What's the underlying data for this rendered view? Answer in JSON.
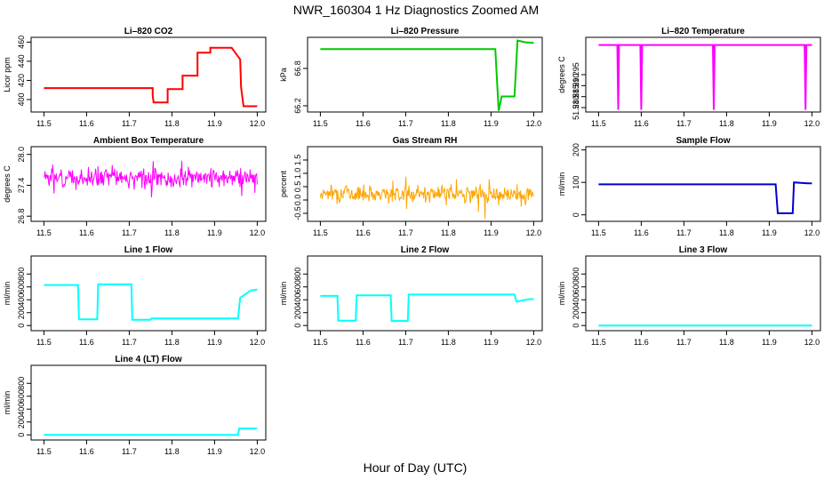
{
  "figure": {
    "title": "NWR_160304  1 Hz Diagnostics Zoomed AM",
    "xlabel": "Hour of Day (UTC)"
  },
  "chart_data": [
    {
      "type": "line",
      "title": "Li–820 CO2",
      "ylabel": "Licor ppm",
      "color": "#ff0000",
      "xlim": [
        11.47,
        12.02
      ],
      "ylim": [
        387,
        465
      ],
      "xticks": [
        11.5,
        11.6,
        11.7,
        11.8,
        11.9,
        12.0
      ],
      "yticks": [
        400,
        420,
        440,
        460
      ],
      "series": [
        {
          "name": "CO2",
          "points": [
            [
              11.5,
              412
            ],
            [
              11.755,
              412
            ],
            [
              11.755,
              404
            ],
            [
              11.757,
              397
            ],
            [
              11.79,
              397
            ],
            [
              11.79,
              411
            ],
            [
              11.825,
              411
            ],
            [
              11.825,
              425
            ],
            [
              11.86,
              425
            ],
            [
              11.86,
              449
            ],
            [
              11.89,
              449
            ],
            [
              11.89,
              454
            ],
            [
              11.94,
              454
            ],
            [
              11.96,
              442
            ],
            [
              11.962,
              413
            ],
            [
              11.968,
              393
            ],
            [
              11.99,
              393
            ],
            [
              12.0,
              393
            ]
          ]
        }
      ]
    },
    {
      "type": "line",
      "title": "Li–820 Pressure",
      "ylabel": "kPa",
      "color": "#00c800",
      "xlim": [
        11.47,
        12.02
      ],
      "ylim": [
        66.1,
        67.3
      ],
      "xticks": [
        11.5,
        11.6,
        11.7,
        11.8,
        11.9,
        12.0
      ],
      "yticks": [
        66.2,
        66.8
      ],
      "series": [
        {
          "name": "Pressure",
          "points": [
            [
              11.5,
              67.11
            ],
            [
              11.91,
              67.11
            ],
            [
              11.918,
              66.12
            ],
            [
              11.925,
              66.35
            ],
            [
              11.955,
              66.35
            ],
            [
              11.962,
              67.25
            ],
            [
              11.98,
              67.22
            ],
            [
              12.0,
              67.21
            ]
          ]
        }
      ]
    },
    {
      "type": "line",
      "title": "Li–820 Temperature",
      "ylabel": "degrees C",
      "color": "#ff00ff",
      "xlim": [
        11.47,
        12.02
      ],
      "ylim": [
        51.278,
        51.312
      ],
      "xticks": [
        11.5,
        11.6,
        11.7,
        11.8,
        11.9,
        12.0
      ],
      "yticks": [
        51.28,
        51.285,
        51.29,
        51.295
      ],
      "series": [
        {
          "name": "Temperature",
          "points": [
            [
              11.5,
              51.3085
            ],
            [
              11.544,
              51.3085
            ],
            [
              11.546,
              51.279
            ],
            [
              11.548,
              51.3085
            ],
            [
              11.598,
              51.3085
            ],
            [
              11.6,
              51.279
            ],
            [
              11.602,
              51.3085
            ],
            [
              11.768,
              51.3085
            ],
            [
              11.77,
              51.279
            ],
            [
              11.772,
              51.3085
            ],
            [
              11.983,
              51.3085
            ],
            [
              11.985,
              51.279
            ],
            [
              11.987,
              51.3085
            ],
            [
              12.0,
              51.3085
            ]
          ]
        }
      ]
    },
    {
      "type": "line",
      "title": "Ambient Box Temperature",
      "ylabel": "degrees C",
      "color": "#ff00ff",
      "xlim": [
        11.47,
        12.02
      ],
      "ylim": [
        26.7,
        28.15
      ],
      "xticks": [
        11.5,
        11.6,
        11.7,
        11.8,
        11.9,
        12.0
      ],
      "yticks": [
        26.8,
        27.4,
        28.0
      ],
      "series": [
        {
          "name": "Ambient",
          "noise": {
            "x0": 11.5,
            "x1": 12.0,
            "center": 27.55,
            "spread": 0.28,
            "n": 360,
            "seed": 3
          }
        }
      ]
    },
    {
      "type": "line",
      "title": "Gas Stream RH",
      "ylabel": "percent",
      "color": "#ffa500",
      "xlim": [
        11.47,
        12.02
      ],
      "ylim": [
        -0.8,
        2.0
      ],
      "xticks": [
        11.5,
        11.6,
        11.7,
        11.8,
        11.9,
        12.0
      ],
      "yticks": [
        -0.5,
        0.0,
        0.5,
        1.0,
        1.5
      ],
      "series": [
        {
          "name": "RH",
          "noise": {
            "x0": 11.5,
            "x1": 12.0,
            "center": 0.25,
            "spread": 0.45,
            "n": 360,
            "seed": 7
          }
        }
      ]
    },
    {
      "type": "line",
      "title": "Sample Flow",
      "ylabel": "ml/min",
      "color": "#0000cd",
      "xlim": [
        11.47,
        12.02
      ],
      "ylim": [
        -20,
        210
      ],
      "xticks": [
        11.5,
        11.6,
        11.7,
        11.8,
        11.9,
        12.0
      ],
      "yticks": [
        0,
        100,
        200
      ],
      "series": [
        {
          "name": "Sample",
          "points": [
            [
              11.5,
              94
            ],
            [
              11.915,
              94
            ],
            [
              11.92,
              5
            ],
            [
              11.955,
              5
            ],
            [
              11.958,
              100
            ],
            [
              11.99,
              97
            ],
            [
              12.0,
              97
            ]
          ]
        }
      ]
    },
    {
      "type": "line",
      "title": "Line 1 Flow",
      "ylabel": "ml/min",
      "color": "#00ffff",
      "xlim": [
        11.47,
        12.02
      ],
      "ylim": [
        -80,
        1080
      ],
      "xticks": [
        11.5,
        11.6,
        11.7,
        11.8,
        11.9,
        12.0
      ],
      "yticks": [
        0,
        200,
        400,
        600,
        800
      ],
      "series": [
        {
          "name": "Line 1",
          "points": [
            [
              11.5,
              630
            ],
            [
              11.58,
              630
            ],
            [
              11.582,
              95
            ],
            [
              11.625,
              95
            ],
            [
              11.627,
              640
            ],
            [
              11.705,
              640
            ],
            [
              11.707,
              90
            ],
            [
              11.75,
              90
            ],
            [
              11.752,
              110
            ],
            [
              11.955,
              110
            ],
            [
              11.96,
              430
            ],
            [
              11.985,
              545
            ],
            [
              12.0,
              560
            ]
          ]
        }
      ]
    },
    {
      "type": "line",
      "title": "Line 2 Flow",
      "ylabel": "ml/min",
      "color": "#00ffff",
      "xlim": [
        11.47,
        12.02
      ],
      "ylim": [
        -80,
        1080
      ],
      "xticks": [
        11.5,
        11.6,
        11.7,
        11.8,
        11.9,
        12.0
      ],
      "yticks": [
        0,
        200,
        400,
        600,
        800
      ],
      "series": [
        {
          "name": "Line 2",
          "points": [
            [
              11.5,
              460
            ],
            [
              11.54,
              460
            ],
            [
              11.542,
              75
            ],
            [
              11.583,
              75
            ],
            [
              11.585,
              470
            ],
            [
              11.665,
              470
            ],
            [
              11.667,
              70
            ],
            [
              11.705,
              70
            ],
            [
              11.707,
              480
            ],
            [
              11.955,
              480
            ],
            [
              11.96,
              370
            ],
            [
              11.99,
              410
            ],
            [
              12.0,
              410
            ]
          ]
        }
      ]
    },
    {
      "type": "line",
      "title": "Line 3 Flow",
      "ylabel": "ml/min",
      "color": "#00ffff",
      "xlim": [
        11.47,
        12.02
      ],
      "ylim": [
        -80,
        1080
      ],
      "xticks": [
        11.5,
        11.6,
        11.7,
        11.8,
        11.9,
        12.0
      ],
      "yticks": [
        0,
        200,
        400,
        600,
        800
      ],
      "series": [
        {
          "name": "Line 3",
          "points": [
            [
              11.5,
              0
            ],
            [
              12.0,
              0
            ]
          ]
        }
      ]
    },
    {
      "type": "line",
      "title": "Line 4 (LT) Flow",
      "ylabel": "ml/min",
      "color": "#00ffff",
      "xlim": [
        11.47,
        12.02
      ],
      "ylim": [
        -80,
        1080
      ],
      "xticks": [
        11.5,
        11.6,
        11.7,
        11.8,
        11.9,
        12.0
      ],
      "yticks": [
        0,
        200,
        400,
        600,
        800
      ],
      "series": [
        {
          "name": "Line 4",
          "points": [
            [
              11.5,
              0
            ],
            [
              11.955,
              0
            ],
            [
              11.958,
              100
            ],
            [
              12.0,
              100
            ]
          ]
        }
      ]
    }
  ]
}
